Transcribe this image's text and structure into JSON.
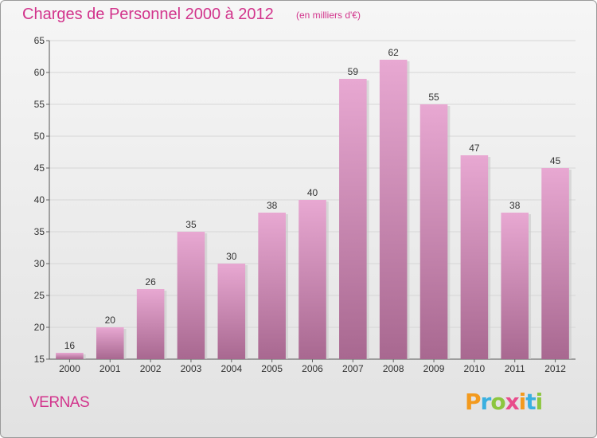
{
  "title": "Charges de Personnel 2000 à 2012",
  "unit_note": "(en milliers d'€)",
  "commune": "VERNAS",
  "logo": {
    "text": "Proxiti",
    "letters": [
      {
        "char": "P",
        "color": "#f39a1e"
      },
      {
        "char": "r",
        "color": "#3ab0e0"
      },
      {
        "char": "o",
        "color": "#8cc63f"
      },
      {
        "char": "x",
        "color": "#e84c8b"
      },
      {
        "char": "i",
        "color": "#f39a1e"
      },
      {
        "char": "t",
        "color": "#3ab0e0"
      },
      {
        "char": "i",
        "color": "#8cc63f"
      }
    ]
  },
  "colors": {
    "bar_top": "#e8a8d2",
    "bar_bottom": "#a86890",
    "title": "#d2348c",
    "grid": "#d6d6d6"
  },
  "chart_data": {
    "type": "bar",
    "categories": [
      "2000",
      "2001",
      "2002",
      "2003",
      "2004",
      "2005",
      "2006",
      "2007",
      "2008",
      "2009",
      "2010",
      "2011",
      "2012"
    ],
    "values": [
      16,
      20,
      26,
      35,
      30,
      38,
      40,
      59,
      62,
      55,
      47,
      38,
      45
    ],
    "title": "Charges de Personnel 2000 à 2012",
    "xlabel": "",
    "ylabel": "",
    "ylim": [
      15,
      65
    ],
    "yticks": [
      15,
      20,
      25,
      30,
      35,
      40,
      45,
      50,
      55,
      60,
      65
    ],
    "grid": true,
    "data_labels": true
  }
}
